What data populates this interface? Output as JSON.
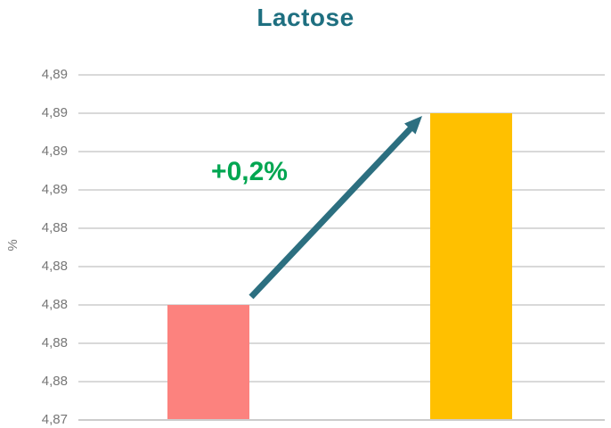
{
  "title": "Lactose",
  "y_axis": {
    "label": "%",
    "tick_labels": [
      "4,89",
      "4,89",
      "4,89",
      "4,89",
      "4,88",
      "4,88",
      "4,88",
      "4,88",
      "4,88",
      "4,87"
    ]
  },
  "annotation": {
    "label": "+0,2%"
  },
  "colors": {
    "title": "#1e6f80",
    "arrow": "#2c6f80",
    "annotation": "#00a651",
    "bar_1": "#fc827e",
    "bar_2": "#ffc000",
    "gridline": "#d9d9d9",
    "axis_line": "#cccccc",
    "axis_text": "#767676"
  },
  "chart_data": {
    "type": "bar",
    "title": "Lactose",
    "ylabel": "%",
    "categories": [
      "",
      ""
    ],
    "values": [
      4.88,
      4.89
    ],
    "bar_colors": [
      "#fc827e",
      "#ffc000"
    ],
    "ylim": [
      4.874,
      4.892
    ],
    "ytick_interval": 0.002,
    "ytick_display": [
      "4,89",
      "4,89",
      "4,89",
      "4,89",
      "4,88",
      "4,88",
      "4,88",
      "4,88",
      "4,88",
      "4,87"
    ],
    "grid": true,
    "legend": false,
    "annotations": [
      {
        "text": "+0,2%",
        "meaning": "percent increase from first bar to second bar",
        "color": "#00a651"
      }
    ],
    "arrow": {
      "from_value": 4.88,
      "to_value": 4.89,
      "color": "#2c6f80"
    }
  }
}
